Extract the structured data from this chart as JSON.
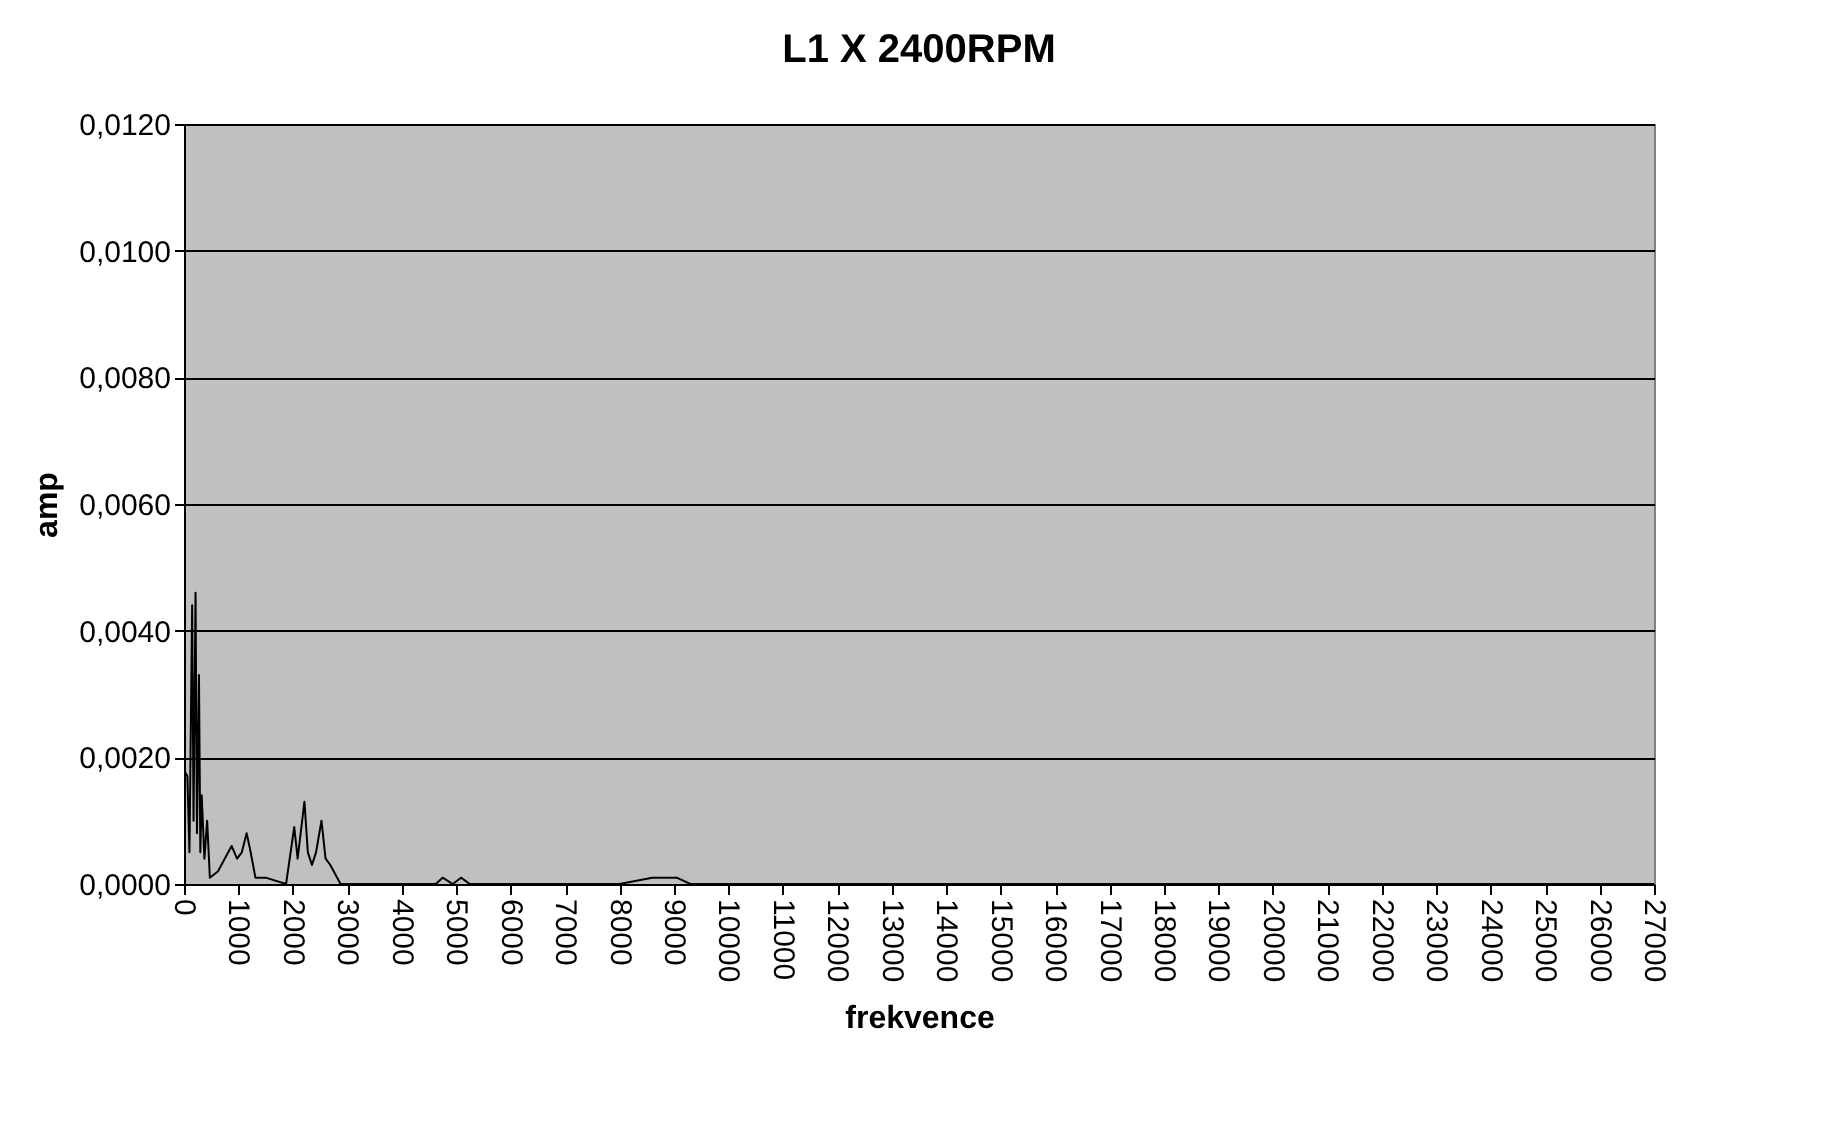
{
  "chart_data": {
    "type": "line",
    "title": "L1 X 2400RPM",
    "xlabel": "frekvence",
    "ylabel": "amp",
    "x": [
      0,
      62,
      100,
      150,
      175,
      212,
      238,
      275,
      300,
      325,
      375,
      425,
      475,
      625,
      812,
      875,
      975,
      1062,
      1150,
      1225,
      1312,
      1500,
      1875,
      2025,
      2087,
      2212,
      2275,
      2350,
      2425,
      2525,
      2600,
      2687,
      2875,
      3375,
      4625,
      4750,
      4937,
      5087,
      5250,
      5600,
      6500,
      8000,
      8600,
      8900,
      9050,
      9300,
      9600,
      10500,
      12000,
      15000,
      18000,
      21000,
      24000,
      27000
    ],
    "series": [
      {
        "color": "#000000",
        "values": [
          0.0018,
          0.0017,
          0.0005,
          0.0044,
          0.001,
          0.0046,
          0.0008,
          0.0033,
          0.0005,
          0.0014,
          0.0004,
          0.001,
          0.0001,
          0.0002,
          0.0005,
          0.0006,
          0.0004,
          0.0005,
          0.0008,
          0.0005,
          0.0001,
          0.0001,
          0,
          0.0009,
          0.0004,
          0.0013,
          0.0005,
          0.0003,
          0.0005,
          0.001,
          0.0004,
          0.0003,
          0,
          0,
          0,
          0.0001,
          0,
          0.0001,
          0,
          0,
          0,
          0,
          0.0001,
          0.0001,
          0.0001,
          0,
          0,
          0,
          0,
          0,
          0,
          0,
          0,
          0
        ]
      }
    ],
    "xlim": [
      0,
      27000
    ],
    "xticks": [
      0,
      1000,
      2000,
      3000,
      4000,
      5000,
      6000,
      7000,
      8000,
      9000,
      10000,
      11000,
      12000,
      13000,
      14000,
      15000,
      16000,
      17000,
      18000,
      19000,
      20000,
      21000,
      22000,
      23000,
      24000,
      25000,
      26000,
      27000
    ],
    "ylim": [
      0,
      0.012
    ],
    "yticks": [
      {
        "value": 0,
        "label": "0,0000"
      },
      {
        "value": 0.002,
        "label": "0,0020"
      },
      {
        "value": 0.004,
        "label": "0,0040"
      },
      {
        "value": 0.006,
        "label": "0,0060"
      },
      {
        "value": 0.008,
        "label": "0,0080"
      },
      {
        "value": 0.01,
        "label": "0,0100"
      },
      {
        "value": 0.012,
        "label": "0,0120"
      }
    ],
    "grid": "y",
    "marker": "none",
    "line_style": "solid"
  }
}
